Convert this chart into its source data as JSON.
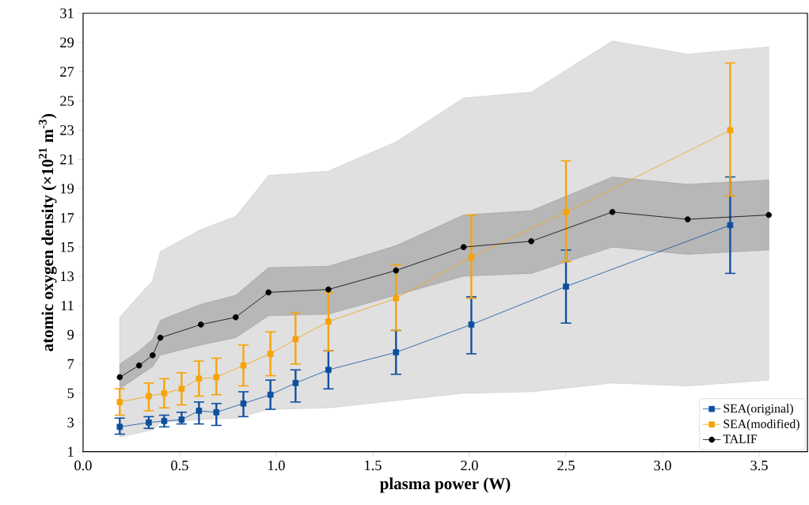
{
  "chart_data": {
    "type": "line",
    "xlabel": "plasma power (W)",
    "ylabel": "atomic oxygen density (×10$^{21}$ m$^{-3}$)",
    "xlim": [
      0,
      3.75
    ],
    "ylim": [
      1,
      31
    ],
    "xticks": [
      {
        "value": 0,
        "label": "0.0"
      },
      0.5,
      {
        "value": 1,
        "label": "1.0"
      },
      1.5,
      {
        "value": 2,
        "label": "2.0"
      },
      2.5,
      {
        "value": 3,
        "label": "3.0"
      },
      3.5
    ],
    "yticks": [
      1,
      3,
      5,
      7,
      9,
      11,
      13,
      15,
      17,
      19,
      21,
      23,
      25,
      27,
      29,
      31
    ],
    "legend": "bottom right",
    "line_style": "solid",
    "series": [
      {
        "x": [
          0.19,
          0.29,
          0.36,
          0.4,
          0.61,
          0.79,
          0.96,
          1.27,
          1.62,
          1.97,
          2.32,
          2.74,
          3.13,
          3.55
        ],
        "color": "#e0e0e0",
        "values": [
          null,
          null,
          null,
          null,
          null,
          null,
          null,
          null,
          null,
          null,
          null,
          null,
          null,
          null
        ],
        "lower": [
          2.0,
          2.3,
          2.5,
          3.0,
          3.2,
          3.3,
          3.9,
          4.0,
          4.5,
          5.0,
          5.1,
          5.7,
          5.5,
          5.9
        ],
        "upper": [
          10.2,
          11.7,
          12.7,
          14.7,
          16.2,
          17.1,
          19.9,
          20.2,
          22.2,
          25.2,
          25.6,
          29.1,
          28.2,
          28.7
        ]
      },
      {
        "name": "TALIF",
        "x": [
          0.19,
          0.29,
          0.36,
          0.4,
          0.61,
          0.79,
          0.96,
          1.27,
          1.62,
          1.97,
          2.32,
          2.74,
          3.13,
          3.55
        ],
        "color": "#000000",
        "marker": "circle",
        "values": [
          6.1,
          6.9,
          7.6,
          8.8,
          9.7,
          10.2,
          11.9,
          12.1,
          13.4,
          15.0,
          15.4,
          17.4,
          16.9,
          17.2
        ],
        "lower": [
          5.3,
          6.2,
          6.8,
          7.6,
          8.3,
          8.8,
          10.3,
          10.4,
          11.7,
          13.0,
          13.2,
          15.0,
          14.5,
          14.8
        ],
        "upper": [
          7.0,
          7.9,
          8.7,
          10.0,
          11.1,
          11.7,
          13.6,
          13.7,
          15.1,
          17.2,
          17.5,
          19.8,
          19.3,
          19.6
        ]
      },
      {
        "name": "SEA(original)",
        "x": [
          0.19,
          0.34,
          0.42,
          0.51,
          0.6,
          0.69,
          0.83,
          0.97,
          1.1,
          1.27,
          1.62,
          2.01,
          2.5,
          3.35
        ],
        "color": "#0d4f9e",
        "marker": "square",
        "values": [
          2.7,
          3.0,
          3.1,
          3.2,
          3.8,
          3.7,
          4.3,
          4.9,
          5.7,
          6.6,
          7.8,
          9.7,
          12.3,
          16.5
        ],
        "errors": [
          [
            2.2,
            3.3
          ],
          [
            2.6,
            3.4
          ],
          [
            2.7,
            3.5
          ],
          [
            2.9,
            3.7
          ],
          [
            2.9,
            4.4
          ],
          [
            2.8,
            4.3
          ],
          [
            3.4,
            5.1
          ],
          [
            3.9,
            5.9
          ],
          [
            4.4,
            6.6
          ],
          [
            5.3,
            7.9
          ],
          [
            6.3,
            9.3
          ],
          [
            7.7,
            11.6
          ],
          [
            9.8,
            14.8
          ],
          [
            13.2,
            19.8
          ]
        ]
      },
      {
        "name": "SEA(modified)",
        "x": [
          0.19,
          0.34,
          0.42,
          0.51,
          0.6,
          0.69,
          0.83,
          0.97,
          1.1,
          1.27,
          1.62,
          2.01,
          2.5,
          3.35
        ],
        "color": "#f5a30a",
        "marker": "square",
        "values": [
          4.4,
          4.8,
          5.0,
          5.3,
          6.0,
          6.1,
          6.9,
          7.7,
          8.7,
          9.9,
          11.5,
          14.3,
          17.4,
          23.0
        ],
        "errors": [
          [
            3.5,
            5.3
          ],
          [
            3.8,
            5.7
          ],
          [
            4.0,
            6.0
          ],
          [
            4.2,
            6.4
          ],
          [
            4.8,
            7.2
          ],
          [
            4.9,
            7.4
          ],
          [
            5.5,
            8.3
          ],
          [
            6.2,
            9.2
          ],
          [
            7.0,
            10.5
          ],
          [
            7.9,
            11.9
          ],
          [
            9.3,
            13.8
          ],
          [
            11.5,
            17.2
          ],
          [
            14.0,
            20.9
          ],
          [
            18.5,
            27.6
          ]
        ]
      }
    ]
  }
}
